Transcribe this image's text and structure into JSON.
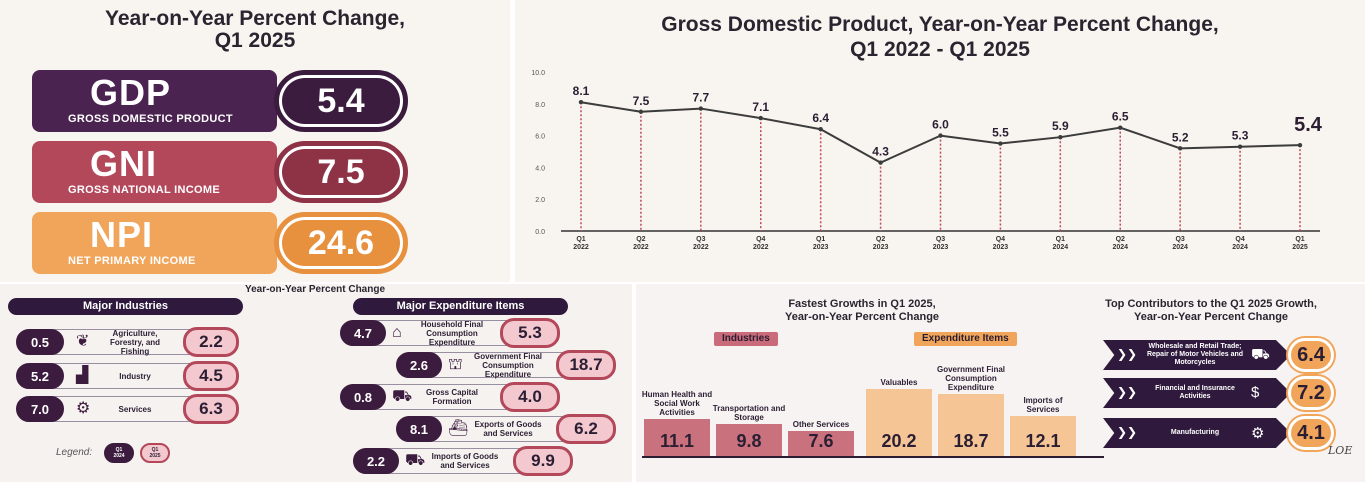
{
  "summary": {
    "title_line1": "Year-on-Year Percent Change,",
    "title_line2": "Q1 2025",
    "items": [
      {
        "abbr": "GDP",
        "name": "GROSS DOMESTIC PRODUCT",
        "value": "5.4",
        "color": "#4a2350",
        "ring": "#3c1c3e"
      },
      {
        "abbr": "GNI",
        "name": "GROSS NATIONAL INCOME",
        "value": "7.5",
        "color": "#b3485b",
        "ring": "#8e3346"
      },
      {
        "abbr": "NPI",
        "name": "NET PRIMARY INCOME",
        "value": "24.6",
        "color": "#f0a55a",
        "ring": "#e7913f"
      }
    ]
  },
  "chart_data": [
    {
      "type": "line",
      "title": "Gross Domestic Product, Year-on-Year Percent Change, Q1 2022 - Q1 2025",
      "title_line1": "Gross Domestic Product, Year-on-Year Percent Change,",
      "title_line2": "Q1 2022 - Q1 2025",
      "categories": [
        [
          "Q1",
          "2022"
        ],
        [
          "Q2",
          "2022"
        ],
        [
          "Q3",
          "2022"
        ],
        [
          "Q4",
          "2022"
        ],
        [
          "Q1",
          "2023"
        ],
        [
          "Q2",
          "2023"
        ],
        [
          "Q3",
          "2023"
        ],
        [
          "Q4",
          "2023"
        ],
        [
          "Q1",
          "2024"
        ],
        [
          "Q2",
          "2024"
        ],
        [
          "Q3",
          "2024"
        ],
        [
          "Q4",
          "2024"
        ],
        [
          "Q1",
          "2025"
        ]
      ],
      "values": [
        8.1,
        7.5,
        7.7,
        7.1,
        6.4,
        4.3,
        6.0,
        5.5,
        5.9,
        6.5,
        5.2,
        5.3,
        5.4
      ],
      "labels": [
        "8.1",
        "7.5",
        "7.7",
        "7.1",
        "6.4",
        "4.3",
        "6.0",
        "5.5",
        "5.9",
        "6.5",
        "5.2",
        "5.3",
        "5.4"
      ],
      "yticks": [
        "0.0",
        "2.0",
        "4.0",
        "6.0",
        "8.0",
        "10.0"
      ],
      "ylim": [
        0,
        10
      ]
    },
    {
      "type": "bar",
      "title": "Fastest Growths in Q1 2025, Year-on-Year Percent Change",
      "title_line1": "Fastest Growths in Q1 2025,",
      "title_line2": "Year-on-Year Percent Change",
      "groups": [
        {
          "name": "Industries",
          "color": "#c96b7a",
          "bar_color": "#c9727e",
          "bars": [
            {
              "label": "Human Health and Social Work Activities",
              "value": 11.1
            },
            {
              "label": "Transportation and Storage",
              "value": 9.8
            },
            {
              "label": "Other Services",
              "value": 7.6
            }
          ]
        },
        {
          "name": "Expenditure Items",
          "color": "#f0a55a",
          "bar_color": "#f6c595",
          "bars": [
            {
              "label": "Valuables",
              "value": 20.2
            },
            {
              "label": "Government Final Consumption Expenditure",
              "value": 18.7
            },
            {
              "label": "Imports of Services",
              "value": 12.1
            }
          ]
        }
      ]
    }
  ],
  "middle": {
    "title": "Year-on-Year Percent Change",
    "industries_header": "Major Industries",
    "industries": [
      {
        "label": "Agriculture, Forestry, and Fishing",
        "q1_2024": "0.5",
        "q1_2025": "2.2",
        "icon": "sprout-icon"
      },
      {
        "label": "Industry",
        "q1_2024": "5.2",
        "q1_2025": "4.5",
        "icon": "factory-icon"
      },
      {
        "label": "Services",
        "q1_2024": "7.0",
        "q1_2025": "6.3",
        "icon": "gear-hand-icon"
      }
    ],
    "legend_label": "Legend:",
    "legend_a": "Q1 2024",
    "legend_b": "Q1 2025",
    "expenditure_header": "Major Expenditure Items",
    "expenditure": [
      {
        "label": "Household Final Consumption Expenditure",
        "q1_2024": "4.7",
        "q1_2025": "5.3",
        "icon": "house-icon"
      },
      {
        "label": "Government Final Consumption Expenditure",
        "q1_2024": "2.6",
        "q1_2025": "18.7",
        "icon": "government-icon"
      },
      {
        "label": "Gross Capital Formation",
        "q1_2024": "0.8",
        "q1_2025": "4.0",
        "icon": "train-icon"
      },
      {
        "label": "Exports of Goods and Services",
        "q1_2024": "8.1",
        "q1_2025": "6.2",
        "icon": "ship-icon"
      },
      {
        "label": "Imports of Goods and Services",
        "q1_2024": "2.2",
        "q1_2025": "9.9",
        "icon": "truck-icon"
      }
    ]
  },
  "contributors": {
    "title_line1": "Top Contributors to the Q1 2025 Growth,",
    "title_line2": "Year-on-Year Percent Change",
    "items": [
      {
        "label": "Wholesale and Retail Trade; Repair of Motor Vehicles and Motorcycles",
        "value": "6.4",
        "icon": "cart-icon"
      },
      {
        "label": "Financial and Insurance Activities",
        "value": "7.2",
        "icon": "money-icon"
      },
      {
        "label": "Manufacturing",
        "value": "4.1",
        "icon": "machinery-icon"
      }
    ]
  },
  "signature": "LOE"
}
